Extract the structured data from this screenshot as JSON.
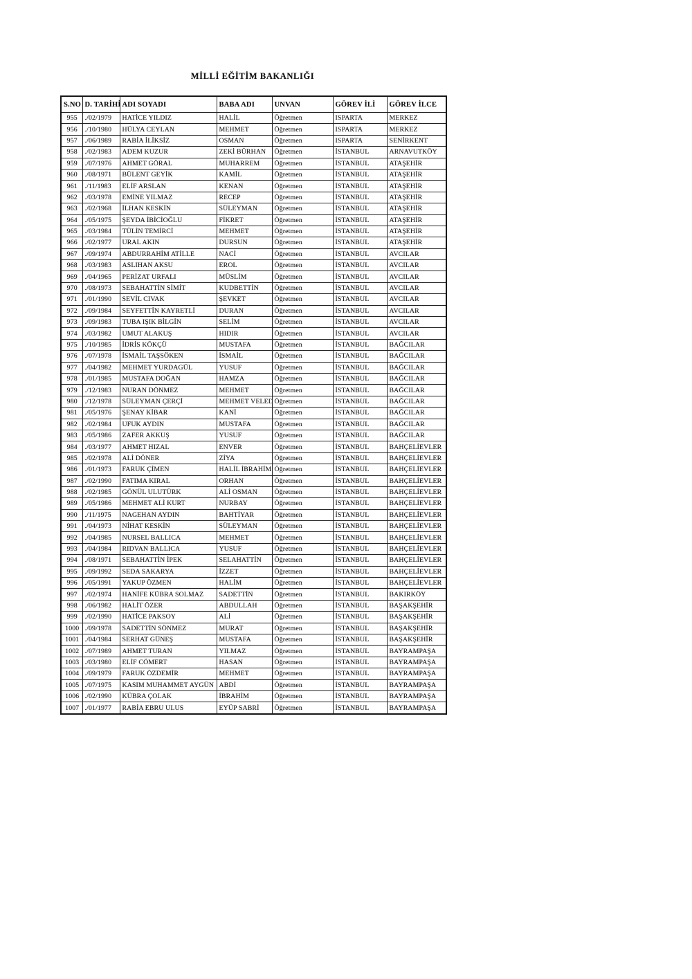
{
  "document": {
    "title": "MİLLİ EĞİTİM BAKANLIĞI",
    "type": "scanned-roster-table"
  },
  "colors": {
    "page_background": "#ffffff",
    "ink": "#1b1b1b",
    "table_border": "#242424"
  },
  "table": {
    "columns": [
      "S.NO",
      "D. TARİHİ",
      "ADI SOYADI",
      "BABA ADI",
      "UNVAN",
      "GÖREV İLİ",
      "GÖREV İLCE"
    ],
    "rows": [
      [
        "955",
        "./02/1979",
        "HATİCE YILDIZ",
        "HALİL",
        "Öğretmen",
        "ISPARTA",
        "MERKEZ"
      ],
      [
        "956",
        "./10/1980",
        "HÜLYA CEYLAN",
        "MEHMET",
        "Öğretmen",
        "ISPARTA",
        "MERKEZ"
      ],
      [
        "957",
        "./06/1989",
        "RABİA İLİKSİZ",
        "OSMAN",
        "Öğretmen",
        "ISPARTA",
        "SENİRKENT"
      ],
      [
        "958",
        "./02/1983",
        "ADEM KUZUR",
        "ZEKİ BÜRHAN",
        "Öğretmen",
        "İSTANBUL",
        "ARNAVUTKÖY"
      ],
      [
        "959",
        "./07/1976",
        "AHMET GÖRAL",
        "MUHARREM",
        "Öğretmen",
        "İSTANBUL",
        "ATAŞEHİR"
      ],
      [
        "960",
        "./08/1971",
        "BÜLENT GEYİK",
        "KAMİL",
        "Öğretmen",
        "İSTANBUL",
        "ATAŞEHİR"
      ],
      [
        "961",
        "./11/1983",
        "ELİF ARSLAN",
        "KENAN",
        "Öğretmen",
        "İSTANBUL",
        "ATAŞEHİR"
      ],
      [
        "962",
        "./03/1978",
        "EMİNE YILMAZ",
        "RECEP",
        "Öğretmen",
        "İSTANBUL",
        "ATAŞEHİR"
      ],
      [
        "963",
        "./02/1968",
        "İLHAN KESKİN",
        "SÜLEYMAN",
        "Öğretmen",
        "İSTANBUL",
        "ATAŞEHİR"
      ],
      [
        "964",
        "./05/1975",
        "ŞEYDA İBİCİOĞLU",
        "FİKRET",
        "Öğretmen",
        "İSTANBUL",
        "ATAŞEHİR"
      ],
      [
        "965",
        "./03/1984",
        "TÜLİN TEMİRCİ",
        "MEHMET",
        "Öğretmen",
        "İSTANBUL",
        "ATAŞEHİR"
      ],
      [
        "966",
        "./02/1977",
        "URAL AKIN",
        "DURSUN",
        "Öğretmen",
        "İSTANBUL",
        "ATAŞEHİR"
      ],
      [
        "967",
        "./09/1974",
        "ABDURRAHİM ATİLLE",
        "NACİ",
        "Öğretmen",
        "İSTANBUL",
        "AVCILAR"
      ],
      [
        "968",
        "./03/1983",
        "ASLIHAN AKSU",
        "EROL",
        "Öğretmen",
        "İSTANBUL",
        "AVCILAR"
      ],
      [
        "969",
        "./04/1965",
        "PERİZAT URFALI",
        "MÜSLİM",
        "Öğretmen",
        "İSTANBUL",
        "AVCILAR"
      ],
      [
        "970",
        "./08/1973",
        "SEBAHATTİN SİMİT",
        "KUDBETTİN",
        "Öğretmen",
        "İSTANBUL",
        "AVCILAR"
      ],
      [
        "971",
        "./01/1990",
        "SEVİL CIVAK",
        "ŞEVKET",
        "Öğretmen",
        "İSTANBUL",
        "AVCILAR"
      ],
      [
        "972",
        "./09/1984",
        "SEYFETTİN KAYRETLİ",
        "DURAN",
        "Öğretmen",
        "İSTANBUL",
        "AVCILAR"
      ],
      [
        "973",
        "./09/1983",
        "TUBA IŞIK BİLGİN",
        "SELİM",
        "Öğretmen",
        "İSTANBUL",
        "AVCILAR"
      ],
      [
        "974",
        "./03/1982",
        "UMUT ALAKUŞ",
        "HIDIR",
        "Öğretmen",
        "İSTANBUL",
        "AVCILAR"
      ],
      [
        "975",
        "./10/1985",
        "İDRİS KÖKÇÜ",
        "MUSTAFA",
        "Öğretmen",
        "İSTANBUL",
        "BAĞCILAR"
      ],
      [
        "976",
        "./07/1978",
        "İSMAİL TAŞSÖKEN",
        "İSMAİL",
        "Öğretmen",
        "İSTANBUL",
        "BAĞCILAR"
      ],
      [
        "977",
        "./04/1982",
        "MEHMET YURDAGÜL",
        "YUSUF",
        "Öğretmen",
        "İSTANBUL",
        "BAĞCILAR"
      ],
      [
        "978",
        "./01/1985",
        "MUSTAFA DOĞAN",
        "HAMZA",
        "Öğretmen",
        "İSTANBUL",
        "BAĞCILAR"
      ],
      [
        "979",
        "./12/1983",
        "NURAN DÖNMEZ",
        "MEHMET",
        "Öğretmen",
        "İSTANBUL",
        "BAĞCILAR"
      ],
      [
        "980",
        "./12/1978",
        "SÜLEYMAN ÇERÇİ",
        "MEHMET VELEDİ",
        "Öğretmen",
        "İSTANBUL",
        "BAĞCILAR"
      ],
      [
        "981",
        "./05/1976",
        "ŞENAY KİBAR",
        "KANİ",
        "Öğretmen",
        "İSTANBUL",
        "BAĞCILAR"
      ],
      [
        "982",
        "./02/1984",
        "UFUK AYDIN",
        "MUSTAFA",
        "Öğretmen",
        "İSTANBUL",
        "BAĞCILAR"
      ],
      [
        "983",
        "./05/1986",
        "ZAFER AKKUŞ",
        "YUSUF",
        "Öğretmen",
        "İSTANBUL",
        "BAĞCILAR"
      ],
      [
        "984",
        "./03/1977",
        "AHMET HIZAL",
        "ENVER",
        "Öğretmen",
        "İSTANBUL",
        "BAHÇELİEVLER"
      ],
      [
        "985",
        "./02/1978",
        "ALİ DÖNER",
        "ZİYA",
        "Öğretmen",
        "İSTANBUL",
        "BAHÇELİEVLER"
      ],
      [
        "986",
        "./01/1973",
        "FARUK ÇİMEN",
        "HALİL İBRAHİM",
        "Öğretmen",
        "İSTANBUL",
        "BAHÇELİEVLER"
      ],
      [
        "987",
        "./02/1990",
        "FATIMA KIRAL",
        "ORHAN",
        "Öğretmen",
        "İSTANBUL",
        "BAHÇELİEVLER"
      ],
      [
        "988",
        "./02/1985",
        "GÖNÜL ULUTÜRK",
        "ALİ OSMAN",
        "Öğretmen",
        "İSTANBUL",
        "BAHÇELİEVLER"
      ],
      [
        "989",
        "./05/1986",
        "MEHMET ALİ KURT",
        "NURBAY",
        "Öğretmen",
        "İSTANBUL",
        "BAHÇELİEVLER"
      ],
      [
        "990",
        "./11/1975",
        "NAGEHAN AYDIN",
        "BAHTİYAR",
        "Öğretmen",
        "İSTANBUL",
        "BAHÇELİEVLER"
      ],
      [
        "991",
        "./04/1973",
        "NİHAT KESKİN",
        "SÜLEYMAN",
        "Öğretmen",
        "İSTANBUL",
        "BAHÇELİEVLER"
      ],
      [
        "992",
        "./04/1985",
        "NURSEL BALLICA",
        "MEHMET",
        "Öğretmen",
        "İSTANBUL",
        "BAHÇELİEVLER"
      ],
      [
        "993",
        "./04/1984",
        "RIDVAN BALLICA",
        "YUSUF",
        "Öğretmen",
        "İSTANBUL",
        "BAHÇELİEVLER"
      ],
      [
        "994",
        "./08/1971",
        "SEBAHATTİN İPEK",
        "SELAHATTİN",
        "Öğretmen",
        "İSTANBUL",
        "BAHÇELİEVLER"
      ],
      [
        "995",
        "./09/1992",
        "SEDA SAKARYA",
        "İZZET",
        "Öğretmen",
        "İSTANBUL",
        "BAHÇELİEVLER"
      ],
      [
        "996",
        "./05/1991",
        "YAKUP ÖZMEN",
        "HALİM",
        "Öğretmen",
        "İSTANBUL",
        "BAHÇELİEVLER"
      ],
      [
        "997",
        "./02/1974",
        "HANİFE KÜBRA SOLMAZ",
        "SADETTİN",
        "Öğretmen",
        "İSTANBUL",
        "BAKIRKÖY"
      ],
      [
        "998",
        "./06/1982",
        "HALİT ÖZER",
        "ABDULLAH",
        "Öğretmen",
        "İSTANBUL",
        "BAŞAKŞEHİR"
      ],
      [
        "999",
        "./02/1990",
        "HATİCE PAKSOY",
        "ALİ",
        "Öğretmen",
        "İSTANBUL",
        "BAŞAKŞEHİR"
      ],
      [
        "1000",
        "./09/1978",
        "SADETTİN SÖNMEZ",
        "MURAT",
        "Öğretmen",
        "İSTANBUL",
        "BAŞAKŞEHİR"
      ],
      [
        "1001",
        "./04/1984",
        "SERHAT GÜNEŞ",
        "MUSTAFA",
        "Öğretmen",
        "İSTANBUL",
        "BAŞAKŞEHİR"
      ],
      [
        "1002",
        "./07/1989",
        "AHMET TURAN",
        "YILMAZ",
        "Öğretmen",
        "İSTANBUL",
        "BAYRAMPAŞA"
      ],
      [
        "1003",
        "./03/1980",
        "ELİF CÖMERT",
        "HASAN",
        "Öğretmen",
        "İSTANBUL",
        "BAYRAMPAŞA"
      ],
      [
        "1004",
        "./09/1979",
        "FARUK ÖZDEMİR",
        "MEHMET",
        "Öğretmen",
        "İSTANBUL",
        "BAYRAMPAŞA"
      ],
      [
        "1005",
        "./07/1975",
        "KASIM MUHAMMET AYGÜN",
        "ABDİ",
        "Öğretmen",
        "İSTANBUL",
        "BAYRAMPAŞA"
      ],
      [
        "1006",
        "./02/1990",
        "KÜBRA ÇOLAK",
        "İBRAHİM",
        "Öğretmen",
        "İSTANBUL",
        "BAYRAMPAŞA"
      ],
      [
        "1007",
        "./01/1977",
        "RABİA EBRU ULUS",
        "EYÜP SABRİ",
        "Öğretmen",
        "İSTANBUL",
        "BAYRAMPAŞA"
      ]
    ]
  }
}
